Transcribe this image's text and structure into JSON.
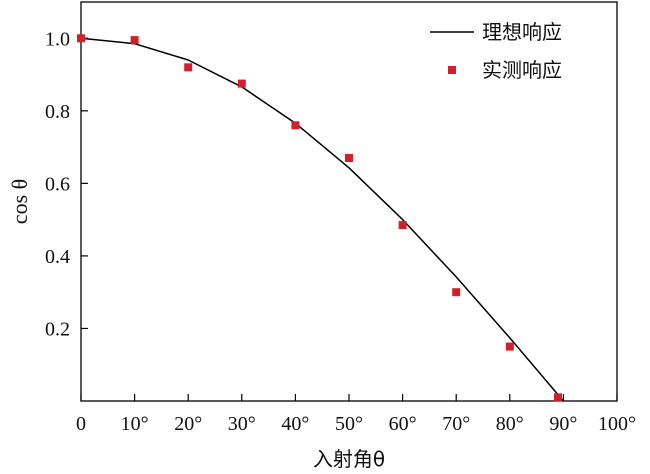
{
  "chart_data": {
    "type": "line",
    "xlabel": "入射角θ",
    "ylabel": "cos θ",
    "xlim": [
      0,
      100
    ],
    "ylim": [
      0,
      1.1
    ],
    "x_ticks": [
      {
        "value": 0,
        "label": "0"
      },
      {
        "value": 10,
        "label": "10°"
      },
      {
        "value": 20,
        "label": "20°"
      },
      {
        "value": 30,
        "label": "30°"
      },
      {
        "value": 40,
        "label": "40°"
      },
      {
        "value": 50,
        "label": "50°"
      },
      {
        "value": 60,
        "label": "60°"
      },
      {
        "value": 70,
        "label": "70°"
      },
      {
        "value": 80,
        "label": "80°"
      },
      {
        "value": 90,
        "label": "90°"
      },
      {
        "value": 100,
        "label": "100°"
      }
    ],
    "y_ticks": [
      {
        "value": 0.2,
        "label": "0.2"
      },
      {
        "value": 0.4,
        "label": "0.4"
      },
      {
        "value": 0.6,
        "label": "0.6"
      },
      {
        "value": 0.8,
        "label": "0.8"
      },
      {
        "value": 1.0,
        "label": "1.0"
      }
    ],
    "grid": false,
    "legend_position": "top-right",
    "series": [
      {
        "name": "理想响应",
        "kind": "line",
        "color": "#000000",
        "x": [
          0,
          10,
          20,
          30,
          40,
          50,
          60,
          70,
          80,
          90
        ],
        "y": [
          1.0,
          0.985,
          0.94,
          0.866,
          0.766,
          0.643,
          0.5,
          0.342,
          0.174,
          0.0
        ]
      },
      {
        "name": "实测响应",
        "kind": "scatter",
        "color": "#d0202a",
        "marker": "square",
        "x": [
          0,
          10,
          20,
          30,
          40,
          50,
          60,
          70,
          80,
          89
        ],
        "y": [
          1.0,
          0.995,
          0.92,
          0.875,
          0.76,
          0.67,
          0.485,
          0.3,
          0.15,
          0.01
        ]
      }
    ]
  }
}
